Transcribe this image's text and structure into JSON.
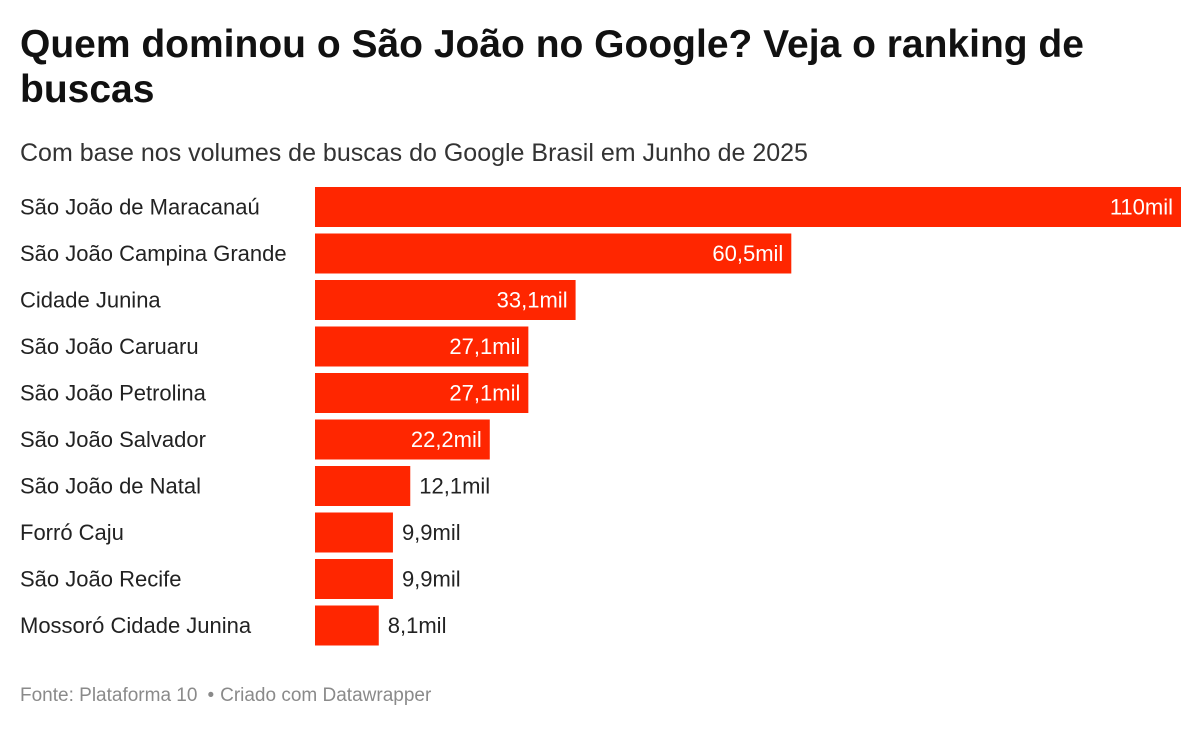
{
  "chart_data": {
    "type": "bar",
    "orientation": "horizontal",
    "title": "Quem dominou o São João no Google? Veja o ranking de buscas",
    "subtitle": "Com base nos volumes de buscas do Google Brasil em Junho de 2025",
    "categories": [
      "São João de Maracanaú",
      "São João Campina Grande",
      "Cidade Junina",
      "São João Caruaru",
      "São João Petrolina",
      "São João Salvador",
      "São João de Natal",
      "Forró Caju",
      "São João Recife",
      "Mossoró Cidade Junina"
    ],
    "values": [
      110000,
      60500,
      33100,
      27100,
      27100,
      22200,
      12100,
      9900,
      9900,
      8100
    ],
    "value_labels": [
      "110mil",
      "60,5mil",
      "33,1mil",
      "27,1mil",
      "27,1mil",
      "22,2mil",
      "12,1mil",
      "9,9mil",
      "9,9mil",
      "8,1mil"
    ],
    "xlim": [
      0,
      110000
    ],
    "grid": false,
    "bar_color": "#ff2600"
  },
  "footer": {
    "source": "Fonte: Plataforma 10",
    "credit": "Criado com Datawrapper",
    "separator": "•"
  }
}
